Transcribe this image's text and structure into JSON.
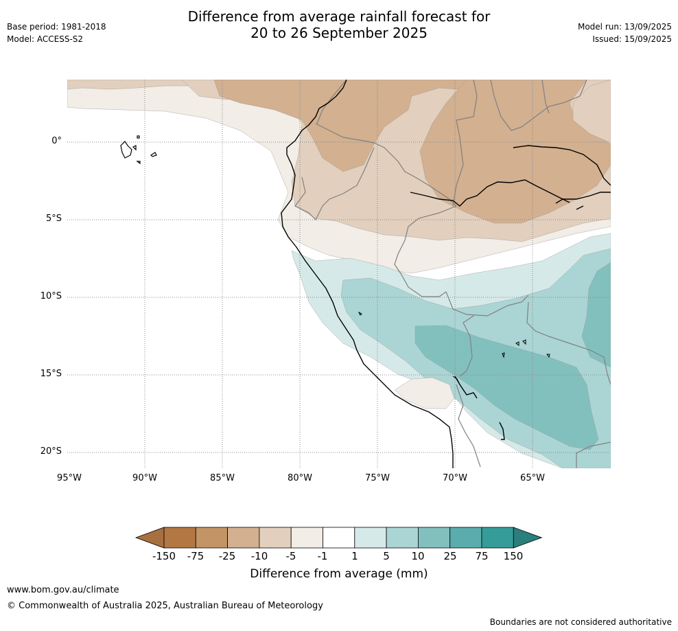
{
  "header": {
    "title_line1": "Difference from average rainfall forecast for",
    "title_line2": "20 to 26 September 2025",
    "base_period": "Base period: 1981-2018",
    "model": "Model: ACCESS-S2",
    "model_run": "Model run: 13/09/2025",
    "issued": "Issued: 15/09/2025"
  },
  "map": {
    "lat_labels": [
      "0°",
      "5°S",
      "10°S",
      "15°S",
      "20°S"
    ],
    "lon_labels": [
      "95°W",
      "90°W",
      "85°W",
      "80°W",
      "75°W",
      "70°W",
      "65°W"
    ],
    "gridlines": true,
    "colors": {
      "dry_1": "#f2ede6",
      "dry_2": "#e2cfbd",
      "dry_3": "#d2b090",
      "wet_1": "#d5e9e8",
      "wet_2": "#aad5d4",
      "wet_3": "#82c0be",
      "coast": "#000000",
      "border": "#808080"
    }
  },
  "legend": {
    "title": "Difference from average (mm)",
    "ticks": [
      "-150",
      "-75",
      "-25",
      "-10",
      "-5",
      "-1",
      "1",
      "5",
      "10",
      "25",
      "75",
      "150"
    ],
    "colors": [
      "#a87040",
      "#b27743",
      "#c39466",
      "#d2b090",
      "#e2cfbd",
      "#f2ede6",
      "#ffffff",
      "#d5e9e8",
      "#aad5d4",
      "#82c0be",
      "#5aadac",
      "#359c99",
      "#2a7f7c"
    ]
  },
  "footer": {
    "url": "www.bom.gov.au/climate",
    "copyright": "© Commonwealth of Australia 2025, Australian Bureau of Meteorology",
    "note": "Boundaries are not considered authoritative"
  }
}
